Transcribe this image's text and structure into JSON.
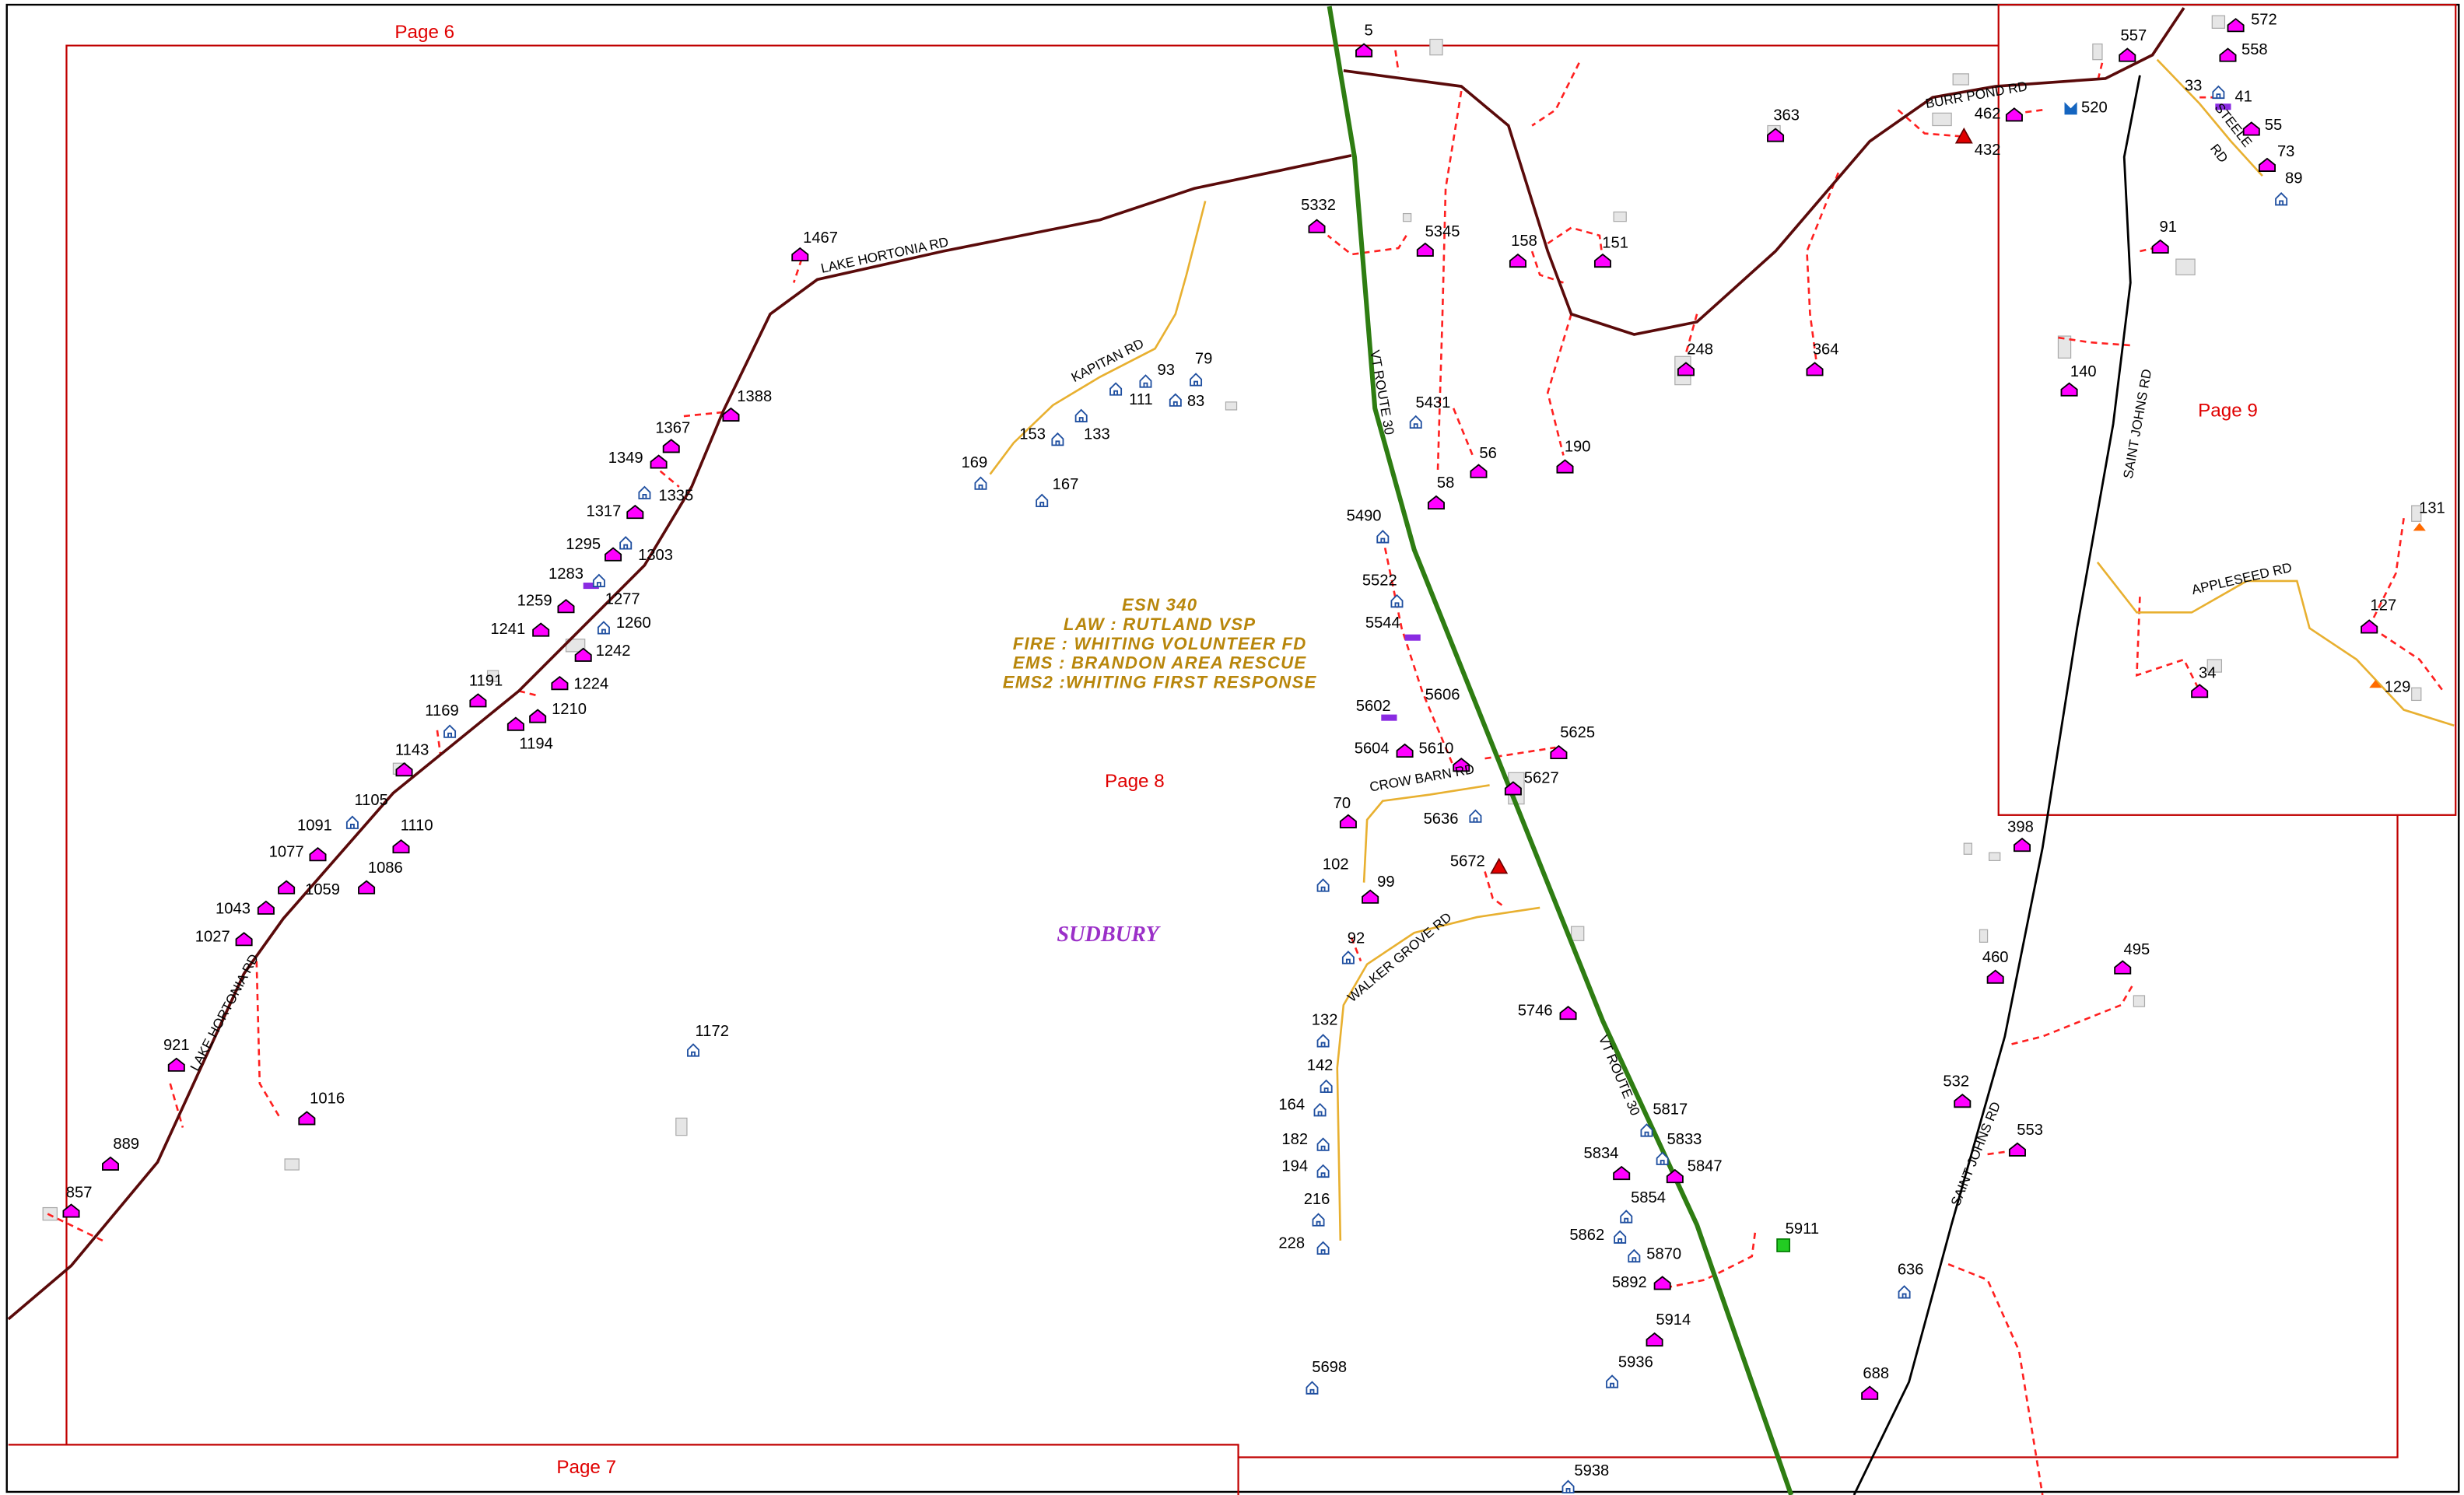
{
  "page_labels": [
    "Page 6",
    "Page 7",
    "Page 8",
    "Page 9"
  ],
  "info_box": {
    "lines": [
      "ESN 340",
      "LAW : RUTLAND VSP",
      "FIRE : WHITING VOLUNTEER FD",
      "EMS : BRANDON AREA RESCUE",
      "EMS2 :WHITING FIRST RESPONSE"
    ]
  },
  "town": "SUDBURY",
  "roads": [
    "LAKE HORTONIA RD",
    "LAKE HORTONIA RD",
    "KAPITAN RD",
    "VT ROUTE 30",
    "VT ROUTE 30",
    "CROW BARN RD",
    "WALKER GROVE RD",
    "BURR POND RD",
    "STEELE",
    "RD",
    "SAINT JOHNS RD",
    "APPLESEED RD",
    "SAINT JOHNS RD"
  ],
  "addresses": [
    "5",
    "1467",
    "1388",
    "1367",
    "1349",
    "1335",
    "1317",
    "1303",
    "1295",
    "1283",
    "1277",
    "1259",
    "1260",
    "1241",
    "1242",
    "1224",
    "1191",
    "1210",
    "1194",
    "1169",
    "1143",
    "1105",
    "1091",
    "1110",
    "1077",
    "1086",
    "1059",
    "1043",
    "1027",
    "921",
    "1016",
    "889",
    "857",
    "1172",
    "79",
    "93",
    "111",
    "83",
    "133",
    "153",
    "169",
    "167",
    "5332",
    "5345",
    "158",
    "151",
    "248",
    "364",
    "363",
    "5431",
    "56",
    "58",
    "190",
    "5490",
    "5522",
    "5544",
    "5606",
    "5602",
    "5604",
    "5610",
    "5625",
    "5627",
    "70",
    "5636",
    "102",
    "5672",
    "99",
    "92",
    "5746",
    "132",
    "142",
    "164",
    "182",
    "194",
    "216",
    "228",
    "5698",
    "5834",
    "5817",
    "5833",
    "5847",
    "5854",
    "5862",
    "5870",
    "5892",
    "5911",
    "5914",
    "5936",
    "5938",
    "462",
    "432",
    "520",
    "557",
    "572",
    "558",
    "33",
    "41",
    "55",
    "73",
    "89",
    "91",
    "140",
    "131",
    "127",
    "129",
    "34",
    "398",
    "460",
    "495",
    "532",
    "553",
    "636",
    "688"
  ]
}
